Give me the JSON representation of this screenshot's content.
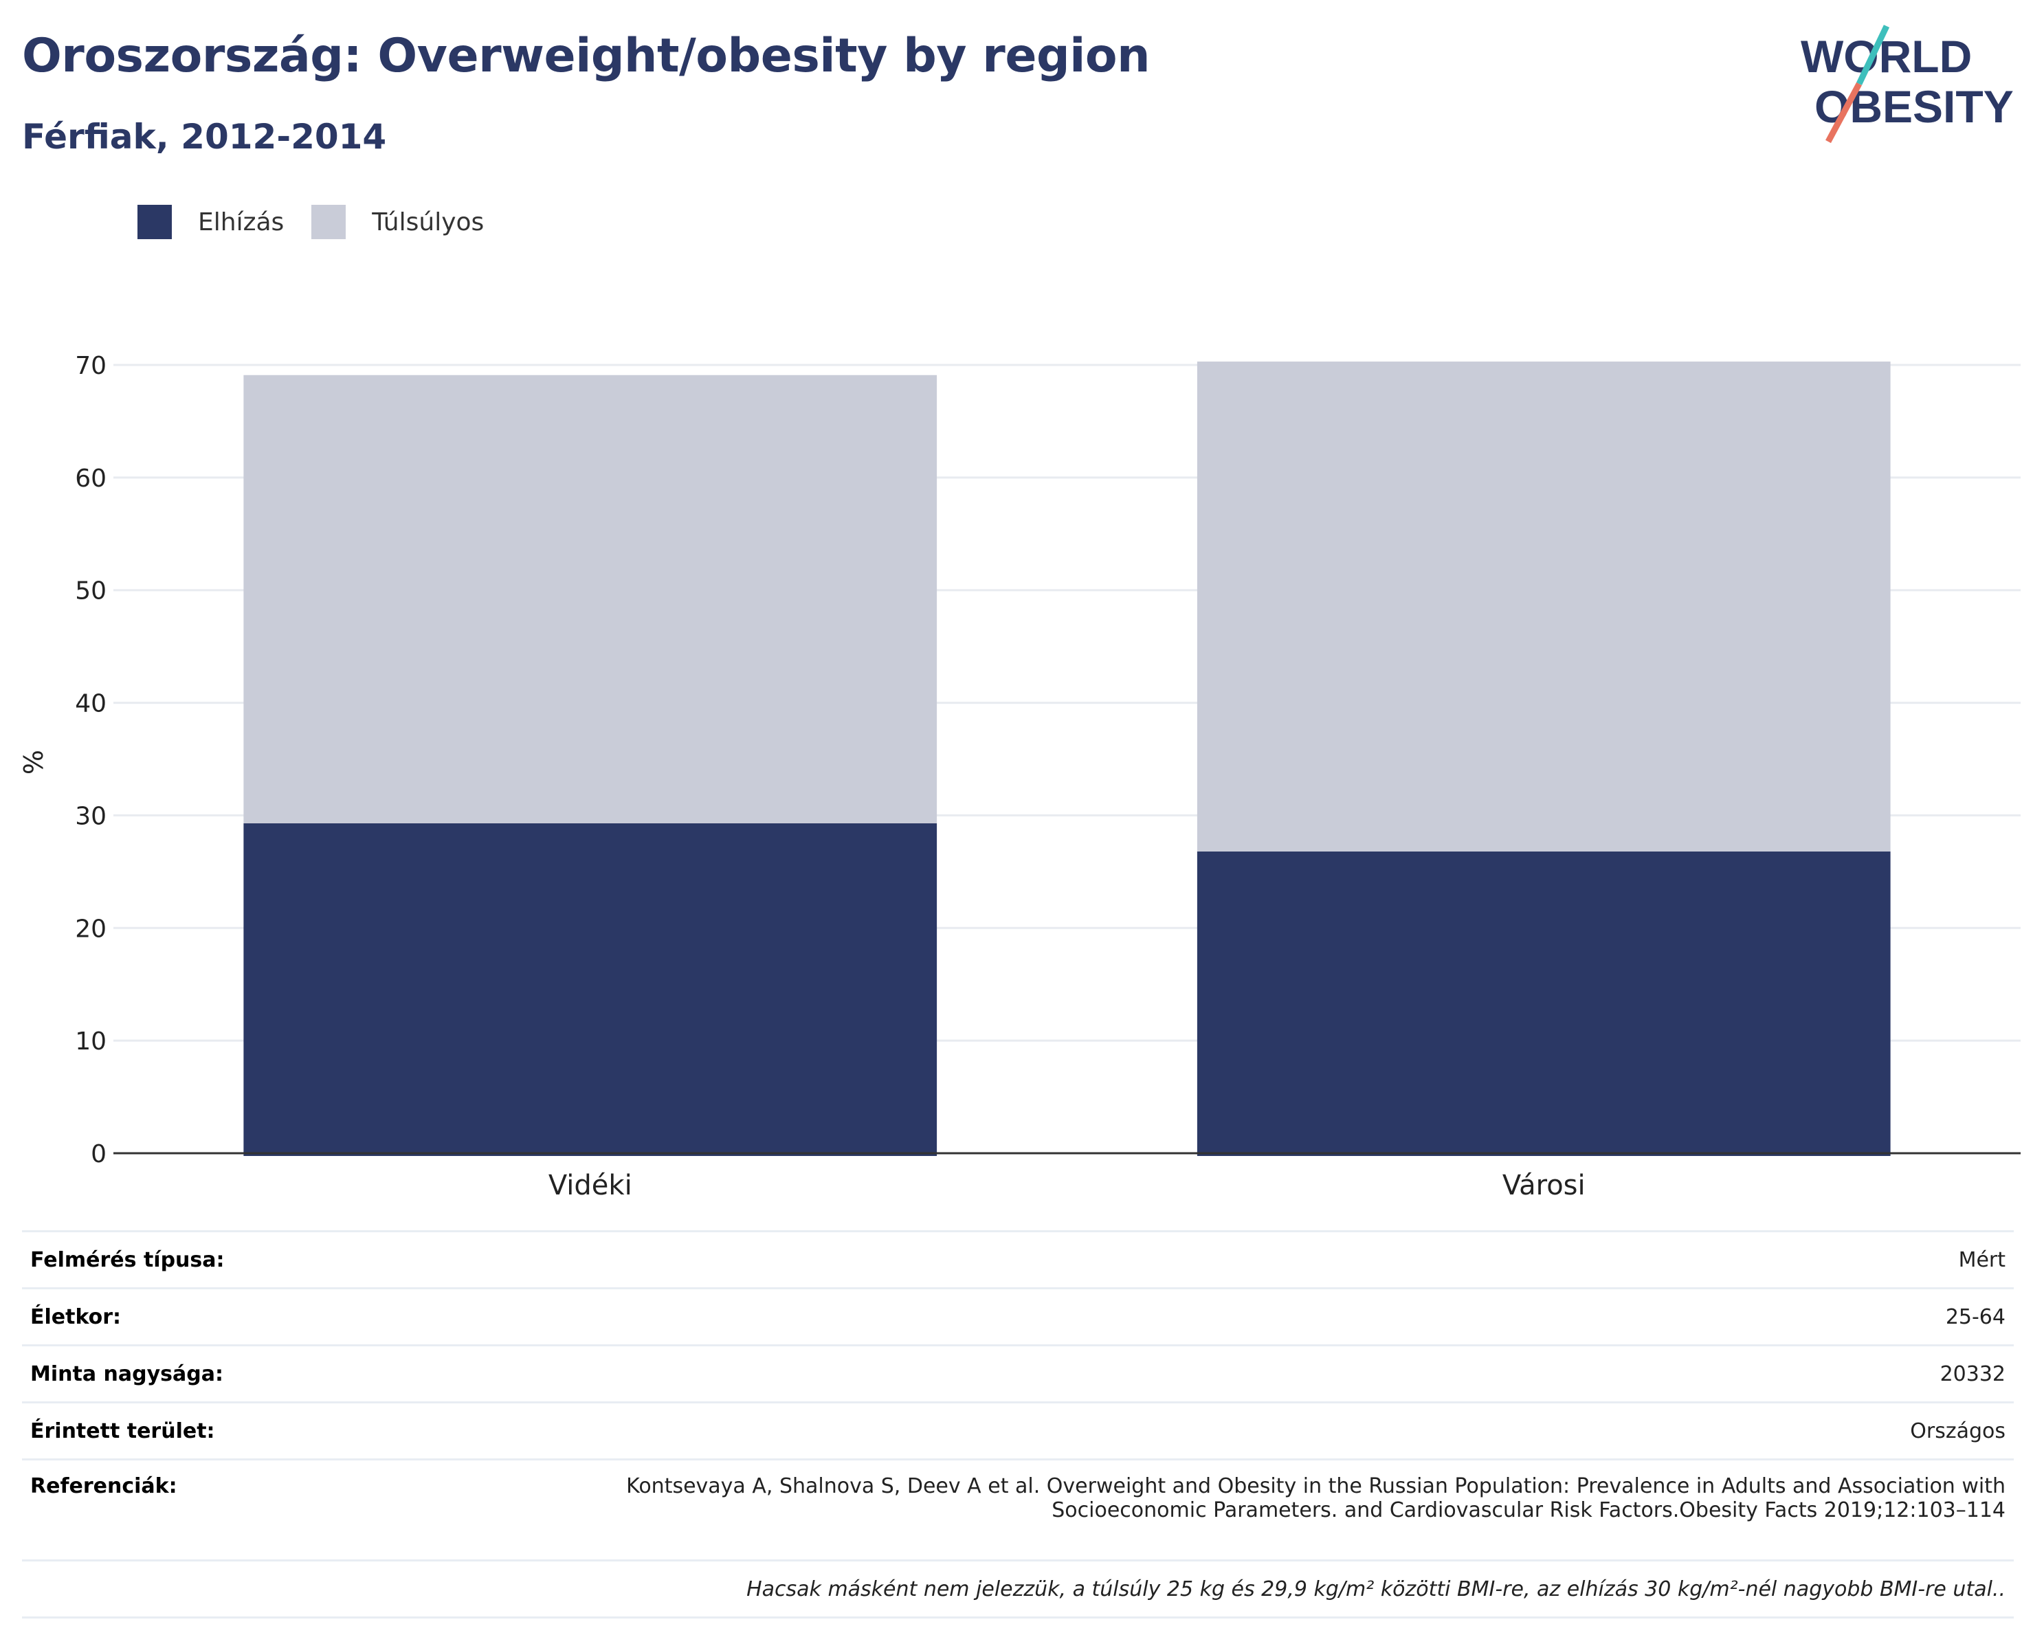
{
  "header": {
    "title": "Oroszország: Overweight/obesity by region",
    "subtitle": "Férfiak, 2012-2014"
  },
  "logo": {
    "line1": "WORLD",
    "line2": "OBESITY",
    "accent_teal": "#3ebfbc",
    "accent_coral": "#e8735f",
    "text_color": "#2b3865"
  },
  "legend": {
    "items": [
      {
        "label": "Elhízás",
        "color": "#2b3865"
      },
      {
        "label": "Túlsúlyos",
        "color": "#c9ccd8"
      }
    ]
  },
  "chart_data": {
    "type": "bar",
    "stacked": true,
    "categories": [
      "Vidéki",
      "Városi"
    ],
    "series": [
      {
        "name": "Elhízás",
        "color": "#2b3865",
        "values": [
          29.3,
          26.8
        ]
      },
      {
        "name": "Túlsúlyos",
        "color": "#c9ccd8",
        "values": [
          39.8,
          43.5
        ]
      }
    ],
    "ylabel": "%",
    "ylim": [
      0,
      70
    ],
    "yticks": [
      0,
      10,
      20,
      30,
      40,
      50,
      60,
      70
    ],
    "grid": true,
    "legend_position": "top-left"
  },
  "info": {
    "rows": [
      {
        "label": "Felmérés típusa:",
        "value": "Mért"
      },
      {
        "label": "Életkor:",
        "value": "25-64"
      },
      {
        "label": "Minta nagysága:",
        "value": "20332"
      },
      {
        "label": "Érintett terület:",
        "value": "Országos"
      }
    ],
    "reference": {
      "label": "Referenciák:",
      "line1": "Kontsevaya A, Shalnova S, Deev A et al. Overweight and Obesity in the Russian Population: Prevalence in Adults and Association with",
      "line2": "Socioeconomic Parameters. and Cardiovascular Risk Factors.Obesity Facts 2019;12:103–114"
    },
    "note": "Hacsak másként nem jelezzük, a túlsúly 25 kg és 29,9 kg/m² közötti BMI-re, az elhízás 30 kg/m²-nél nagyobb BMI-re utal.."
  }
}
